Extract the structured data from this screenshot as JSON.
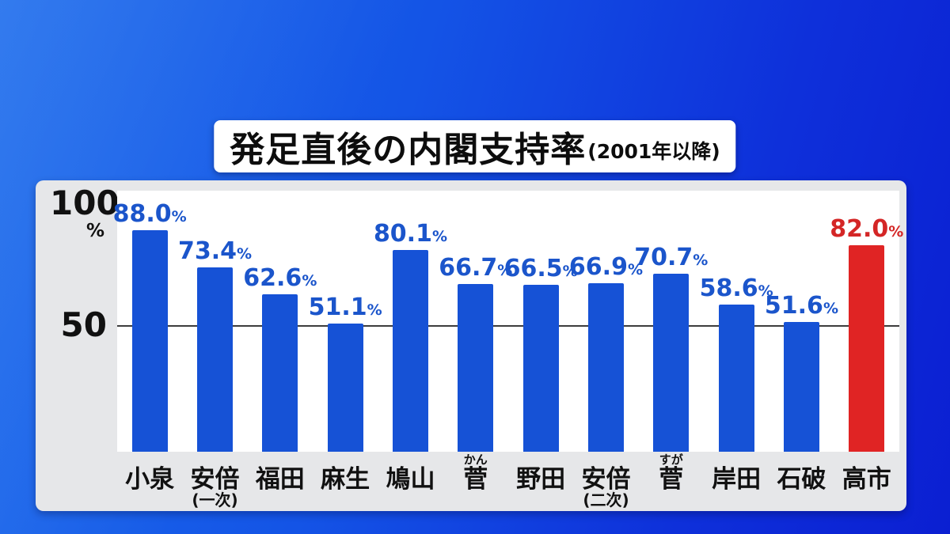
{
  "title": {
    "main": "発足直後の内閣支持率",
    "suffix": "(2001年以降)"
  },
  "y_axis": {
    "top_label": "100",
    "top_unit": "%",
    "mid_label": "50"
  },
  "colors": {
    "bar_blue": "#1652d6",
    "bar_red": "#e02424",
    "value_blue": "#1b55cb",
    "value_red": "#d42626",
    "background_from": "#1c6cec",
    "background_to": "#0b1fd2",
    "panel": "#e6e7e9",
    "gridline": "#3c3c3c"
  },
  "chart_data": {
    "type": "bar",
    "title": "発足直後の内閣支持率(2001年以降)",
    "unit": "%",
    "ylim": [
      0,
      100
    ],
    "gridline_at": 50,
    "y_ticks": [
      "100",
      "50"
    ],
    "legend": "none",
    "categories": [
      "小泉",
      "安倍",
      "福田",
      "麻生",
      "鳩山",
      "菅",
      "野田",
      "安倍",
      "菅",
      "岸田",
      "石破",
      "高市"
    ],
    "values": [
      88.0,
      73.4,
      62.6,
      51.1,
      80.1,
      66.7,
      66.5,
      66.9,
      70.7,
      58.6,
      51.6,
      82.0
    ],
    "bars": [
      {
        "name": "小泉",
        "value": 88.0,
        "color": "blue"
      },
      {
        "name": "安倍",
        "subtext": "(一次)",
        "value": 73.4,
        "color": "blue"
      },
      {
        "name": "福田",
        "value": 62.6,
        "color": "blue"
      },
      {
        "name": "麻生",
        "value": 51.1,
        "color": "blue"
      },
      {
        "name": "鳩山",
        "value": 80.1,
        "color": "blue"
      },
      {
        "name": "菅",
        "furigana": "かん",
        "value": 66.7,
        "color": "blue"
      },
      {
        "name": "野田",
        "value": 66.5,
        "color": "blue"
      },
      {
        "name": "安倍",
        "subtext": "(二次)",
        "value": 66.9,
        "color": "blue"
      },
      {
        "name": "菅",
        "furigana": "すが",
        "value": 70.7,
        "color": "blue"
      },
      {
        "name": "岸田",
        "value": 58.6,
        "color": "blue"
      },
      {
        "name": "石破",
        "value": 51.6,
        "color": "blue"
      },
      {
        "name": "高市",
        "value": 82.0,
        "color": "red"
      }
    ]
  }
}
